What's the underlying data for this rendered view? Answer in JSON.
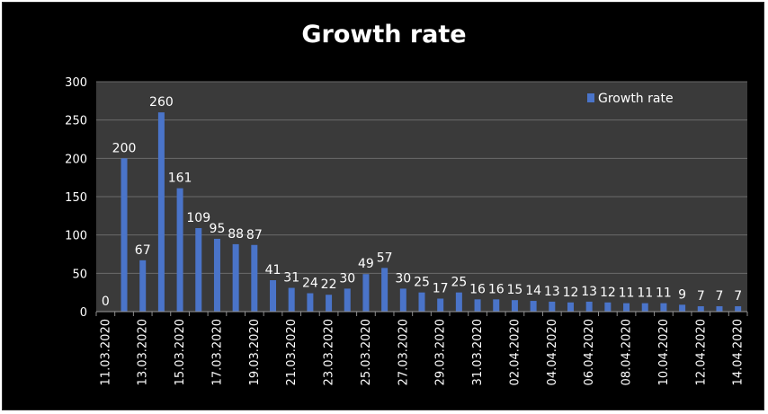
{
  "chart_data": {
    "type": "bar",
    "title": "Growth rate",
    "xlabel": "",
    "ylabel": "",
    "ylim": [
      0,
      300
    ],
    "yticks": [
      "0",
      "50",
      "100",
      "150",
      "200",
      "250",
      "300"
    ],
    "grid": true,
    "legend_position": "top-right",
    "bar_color": "#4a74c9",
    "plot_background": "#3a3a3a",
    "categories": [
      "11.03.2020",
      "12.03.2020",
      "13.03.2020",
      "14.03.2020",
      "15.03.2020",
      "16.03.2020",
      "17.03.2020",
      "18.03.2020",
      "19.03.2020",
      "20.03.2020",
      "21.03.2020",
      "22.03.2020",
      "23.03.2020",
      "24.03.2020",
      "25.03.2020",
      "26.03.2020",
      "27.03.2020",
      "28.03.2020",
      "29.03.2020",
      "30.03.2020",
      "31.03.2020",
      "01.04.2020",
      "02.04.2020",
      "03.04.2020",
      "04.04.2020",
      "05.04.2020",
      "06.04.2020",
      "07.04.2020",
      "08.04.2020",
      "09.04.2020",
      "10.04.2020",
      "11.04.2020",
      "12.04.2020",
      "13.04.2020",
      "14.04.2020"
    ],
    "tick_labels": [
      "11.03.2020",
      "",
      "13.03.2020",
      "",
      "15.03.2020",
      "",
      "17.03.2020",
      "",
      "19.03.2020",
      "",
      "21.03.2020",
      "",
      "23.03.2020",
      "",
      "25.03.2020",
      "",
      "27.03.2020",
      "",
      "29.03.2020",
      "",
      "31.03.2020",
      "",
      "02.04.2020",
      "",
      "04.04.2020",
      "",
      "06.04.2020",
      "",
      "08.04.2020",
      "",
      "10.04.2020",
      "",
      "12.04.2020",
      "",
      "14.04.2020"
    ],
    "series": [
      {
        "name": "Growth rate",
        "values": [
          0,
          200,
          67,
          260,
          161,
          109,
          95,
          88,
          87,
          41,
          31,
          24,
          22,
          30,
          49,
          57,
          30,
          25,
          17,
          25,
          16,
          16,
          15,
          14,
          13,
          12,
          13,
          12,
          11,
          11,
          11,
          9,
          7,
          7,
          7
        ]
      }
    ]
  }
}
